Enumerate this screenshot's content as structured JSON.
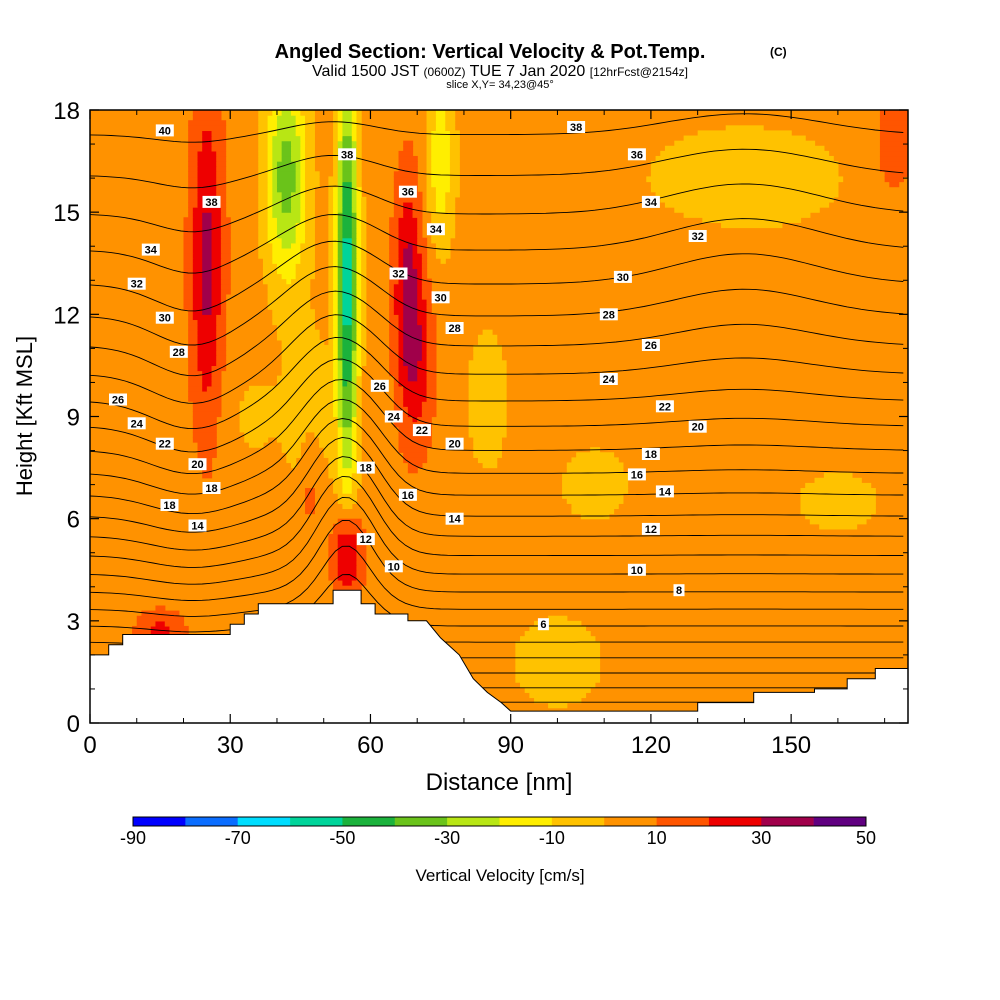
{
  "chart_data": {
    "type": "heatmap",
    "title": "Angled Section: Vertical Velocity & Pot.Temp.",
    "title_units": "(C)",
    "subtitle": {
      "valid": "Valid 1500 JST",
      "utc": "(0600Z)",
      "date": "TUE 7 Jan 2020",
      "forecast": "[12hrFcst@2154z]"
    },
    "slice_label": "slice X,Y= 34,23@45°",
    "xlabel": "Distance [nm]",
    "ylabel": "Height [Kft MSL]",
    "xlim": [
      0,
      175
    ],
    "ylim": [
      0,
      18
    ],
    "x_ticks": [
      0,
      30,
      60,
      90,
      120,
      150
    ],
    "y_ticks": [
      0,
      3,
      6,
      9,
      12,
      15,
      18
    ],
    "colorbar": {
      "label": "Vertical Velocity [cm/s]",
      "ticks": [
        "-90",
        "-70",
        "-50",
        "-30",
        "-10",
        "10",
        "30",
        "50"
      ],
      "bins": [
        -90,
        -80,
        -70,
        -60,
        -50,
        -40,
        -30,
        -20,
        -10,
        0,
        10,
        20,
        30,
        40,
        50
      ],
      "colors": [
        "#0000ff",
        "#0a6dff",
        "#00ddff",
        "#00d49a",
        "#1bb23c",
        "#6ac31a",
        "#b8e614",
        "#ffee00",
        "#ffc200",
        "#ff9200",
        "#ff5500",
        "#ee0000",
        "#a0004a",
        "#600080"
      ]
    },
    "terrain": [
      [
        0,
        2
      ],
      [
        4,
        2
      ],
      [
        4,
        2.3
      ],
      [
        7,
        2.3
      ],
      [
        7,
        2.6
      ],
      [
        20,
        2.6
      ],
      [
        30,
        2.6
      ],
      [
        30,
        2.9
      ],
      [
        33,
        2.9
      ],
      [
        33,
        3.2
      ],
      [
        36,
        3.2
      ],
      [
        36,
        3.5
      ],
      [
        52,
        3.5
      ],
      [
        52,
        3.9
      ],
      [
        58,
        3.9
      ],
      [
        58,
        3.5
      ],
      [
        61,
        3.5
      ],
      [
        61,
        3.2
      ],
      [
        68,
        3.2
      ],
      [
        68,
        3.0
      ],
      [
        72,
        3.0
      ],
      [
        75,
        2.5
      ],
      [
        79,
        2.0
      ],
      [
        82,
        1.3
      ],
      [
        85,
        0.9
      ],
      [
        88,
        0.6
      ],
      [
        90,
        0.35
      ],
      [
        130,
        0.35
      ],
      [
        130,
        0.6
      ],
      [
        142,
        0.6
      ],
      [
        142,
        0.9
      ],
      [
        155,
        0.9
      ],
      [
        155,
        1.0
      ],
      [
        162,
        1.0
      ],
      [
        162,
        1.3
      ],
      [
        168,
        1.3
      ],
      [
        168,
        1.6
      ],
      [
        175,
        1.6
      ]
    ],
    "isentrope_labels": [
      {
        "t": "40",
        "x": 16,
        "y": 17.4
      },
      {
        "t": "38",
        "x": 26,
        "y": 15.3
      },
      {
        "t": "34",
        "x": 13,
        "y": 13.9
      },
      {
        "t": "32",
        "x": 10,
        "y": 12.9
      },
      {
        "t": "30",
        "x": 16,
        "y": 11.9
      },
      {
        "t": "28",
        "x": 19,
        "y": 10.9
      },
      {
        "t": "26",
        "x": 6,
        "y": 9.5
      },
      {
        "t": "24",
        "x": 10,
        "y": 8.8
      },
      {
        "t": "22",
        "x": 16,
        "y": 8.2
      },
      {
        "t": "20",
        "x": 23,
        "y": 7.6
      },
      {
        "t": "18",
        "x": 26,
        "y": 6.9
      },
      {
        "t": "18",
        "x": 17,
        "y": 6.4
      },
      {
        "t": "14",
        "x": 23,
        "y": 5.8
      },
      {
        "t": "38",
        "x": 55,
        "y": 16.7
      },
      {
        "t": "36",
        "x": 68,
        "y": 15.6
      },
      {
        "t": "34",
        "x": 74,
        "y": 14.5
      },
      {
        "t": "32",
        "x": 66,
        "y": 13.2
      },
      {
        "t": "30",
        "x": 75,
        "y": 12.5
      },
      {
        "t": "28",
        "x": 78,
        "y": 11.6
      },
      {
        "t": "26",
        "x": 62,
        "y": 9.9
      },
      {
        "t": "24",
        "x": 65,
        "y": 9.0
      },
      {
        "t": "22",
        "x": 71,
        "y": 8.6
      },
      {
        "t": "20",
        "x": 78,
        "y": 8.2
      },
      {
        "t": "18",
        "x": 59,
        "y": 7.5
      },
      {
        "t": "16",
        "x": 68,
        "y": 6.7
      },
      {
        "t": "14",
        "x": 78,
        "y": 6.0
      },
      {
        "t": "12",
        "x": 59,
        "y": 5.4
      },
      {
        "t": "10",
        "x": 65,
        "y": 4.6
      },
      {
        "t": "38",
        "x": 104,
        "y": 17.5
      },
      {
        "t": "36",
        "x": 117,
        "y": 16.7
      },
      {
        "t": "34",
        "x": 120,
        "y": 15.3
      },
      {
        "t": "32",
        "x": 130,
        "y": 14.3
      },
      {
        "t": "30",
        "x": 114,
        "y": 13.1
      },
      {
        "t": "28",
        "x": 111,
        "y": 12.0
      },
      {
        "t": "26",
        "x": 120,
        "y": 11.1
      },
      {
        "t": "24",
        "x": 111,
        "y": 10.1
      },
      {
        "t": "22",
        "x": 123,
        "y": 9.3
      },
      {
        "t": "20",
        "x": 130,
        "y": 8.7
      },
      {
        "t": "18",
        "x": 120,
        "y": 7.9
      },
      {
        "t": "16",
        "x": 117,
        "y": 7.3
      },
      {
        "t": "14",
        "x": 123,
        "y": 6.8
      },
      {
        "t": "12",
        "x": 120,
        "y": 5.7
      },
      {
        "t": "10",
        "x": 117,
        "y": 4.5
      },
      {
        "t": "8",
        "x": 126,
        "y": 3.9
      },
      {
        "t": "6",
        "x": 97,
        "y": 2.9
      }
    ]
  }
}
